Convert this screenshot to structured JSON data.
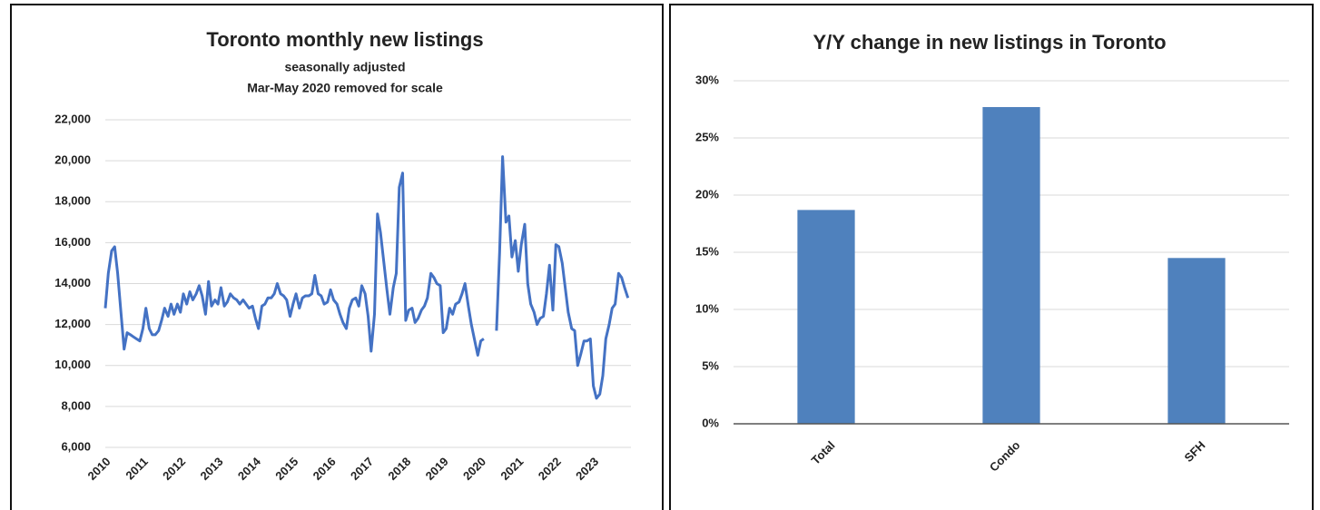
{
  "chart_data": [
    {
      "type": "line",
      "title": "Toronto monthly new listings",
      "subtitle": [
        "seasonally adjusted",
        "Mar-May 2020 removed for scale"
      ],
      "color": "#4472c4",
      "grid": true,
      "x": [
        2010,
        2010.08,
        2010.17,
        2010.25,
        2010.33,
        2010.42,
        2010.5,
        2010.58,
        2010.67,
        2010.75,
        2010.83,
        2010.92,
        2011,
        2011.08,
        2011.17,
        2011.25,
        2011.33,
        2011.42,
        2011.5,
        2011.58,
        2011.67,
        2011.75,
        2011.83,
        2011.92,
        2012,
        2012.08,
        2012.17,
        2012.25,
        2012.33,
        2012.42,
        2012.5,
        2012.58,
        2012.67,
        2012.75,
        2012.83,
        2012.92,
        2013,
        2013.08,
        2013.17,
        2013.25,
        2013.33,
        2013.42,
        2013.5,
        2013.58,
        2013.67,
        2013.75,
        2013.83,
        2013.92,
        2014,
        2014.08,
        2014.17,
        2014.25,
        2014.33,
        2014.42,
        2014.5,
        2014.58,
        2014.67,
        2014.75,
        2014.83,
        2014.92,
        2015,
        2015.08,
        2015.17,
        2015.25,
        2015.33,
        2015.42,
        2015.5,
        2015.58,
        2015.67,
        2015.75,
        2015.83,
        2015.92,
        2016,
        2016.08,
        2016.17,
        2016.25,
        2016.33,
        2016.42,
        2016.5,
        2016.58,
        2016.67,
        2016.75,
        2016.83,
        2016.92,
        2017,
        2017.08,
        2017.17,
        2017.25,
        2017.33,
        2017.42,
        2017.5,
        2017.58,
        2017.67,
        2017.75,
        2017.83,
        2017.92,
        2018,
        2018.08,
        2018.17,
        2018.25,
        2018.33,
        2018.42,
        2018.5,
        2018.58,
        2018.67,
        2018.75,
        2018.83,
        2018.92,
        2019,
        2019.08,
        2019.17,
        2019.25,
        2019.33,
        2019.42,
        2019.5,
        2019.58,
        2019.67,
        2019.75,
        2019.83,
        2019.92,
        2020,
        2020.08,
        2020.17,
        2020.25,
        2020.33,
        2020.42,
        2020.5,
        2020.58,
        2020.67,
        2020.75,
        2020.83,
        2020.92,
        2021,
        2021.08,
        2021.17,
        2021.25,
        2021.33,
        2021.42,
        2021.5,
        2021.58,
        2021.67,
        2021.75,
        2021.83,
        2021.92,
        2022,
        2022.08,
        2022.17,
        2022.25,
        2022.33,
        2022.42,
        2022.5,
        2022.58,
        2022.67,
        2022.75,
        2022.83,
        2022.92,
        2023,
        2023.08,
        2023.17,
        2023.25,
        2023.33,
        2023.42,
        2023.5,
        2023.58,
        2023.67,
        2023.75,
        2023.83,
        2023.92
      ],
      "values": [
        12800,
        14500,
        15600,
        15800,
        14500,
        12500,
        10800,
        11600,
        11500,
        11400,
        11300,
        11200,
        11800,
        12800,
        11800,
        11500,
        11500,
        11700,
        12200,
        12800,
        12400,
        13000,
        12500,
        13000,
        12600,
        13500,
        13000,
        13600,
        13200,
        13500,
        13900,
        13400,
        12500,
        14100,
        12900,
        13200,
        13000,
        13800,
        12900,
        13100,
        13500,
        13300,
        13200,
        13000,
        13200,
        13000,
        12800,
        12900,
        12300,
        11800,
        12900,
        13000,
        13300,
        13300,
        13500,
        14000,
        13500,
        13400,
        13200,
        12400,
        13000,
        13500,
        12800,
        13300,
        13400,
        13400,
        13500,
        14400,
        13500,
        13400,
        13000,
        13100,
        13700,
        13200,
        13000,
        12500,
        12100,
        11800,
        12800,
        13200,
        13300,
        12900,
        13900,
        13500,
        12400,
        10700,
        12500,
        17400,
        16500,
        15000,
        13700,
        12500,
        13800,
        14500,
        18700,
        19400,
        12200,
        12700,
        12800,
        12100,
        12300,
        12700,
        12900,
        13300,
        14500,
        14300,
        14000,
        13900,
        11600,
        11800,
        12800,
        12500,
        13000,
        13100,
        13500,
        14000,
        12900,
        12000,
        11300,
        10500,
        11200,
        11300,
        null,
        null,
        null,
        11700,
        15500,
        20200,
        17000,
        17300,
        15300,
        16100,
        14600,
        15900,
        16900,
        14000,
        13000,
        12600,
        12000,
        12300,
        12400,
        13500,
        14900,
        12700,
        15900,
        15800,
        15000,
        13800,
        12600,
        11800,
        11700,
        10000,
        10600,
        11200,
        11200,
        11300,
        9000,
        8400,
        8600,
        9500,
        11300,
        12000,
        12800,
        13000,
        14500,
        14300,
        13800,
        13300
      ],
      "xlim": [
        2010,
        2024
      ],
      "xticks": [
        2010,
        2011,
        2012,
        2013,
        2014,
        2015,
        2016,
        2017,
        2018,
        2019,
        2020,
        2021,
        2022,
        2023
      ],
      "ylim": [
        6000,
        22000
      ],
      "yticks": [
        {
          "value": 6000,
          "label": "6,000"
        },
        {
          "value": 8000,
          "label": "8,000"
        },
        {
          "value": 10000,
          "label": "10,000"
        },
        {
          "value": 12000,
          "label": "12,000"
        },
        {
          "value": 14000,
          "label": "14,000"
        },
        {
          "value": 16000,
          "label": "16,000"
        },
        {
          "value": 18000,
          "label": "18,000"
        },
        {
          "value": 20000,
          "label": "20,000"
        },
        {
          "value": 22000,
          "label": "22,000"
        }
      ]
    },
    {
      "type": "bar",
      "title": "Y/Y change in new listings in Toronto",
      "color": "#4f81bd",
      "grid": true,
      "categories": [
        "Total",
        "Condo",
        "SFH"
      ],
      "values": [
        18.7,
        27.7,
        14.5
      ],
      "ylim": [
        0,
        30
      ],
      "yticks": [
        {
          "value": 0,
          "label": "0%"
        },
        {
          "value": 5,
          "label": "5%"
        },
        {
          "value": 10,
          "label": "10%"
        },
        {
          "value": 15,
          "label": "15%"
        },
        {
          "value": 20,
          "label": "20%"
        },
        {
          "value": 25,
          "label": "25%"
        },
        {
          "value": 30,
          "label": "30%"
        }
      ]
    }
  ]
}
